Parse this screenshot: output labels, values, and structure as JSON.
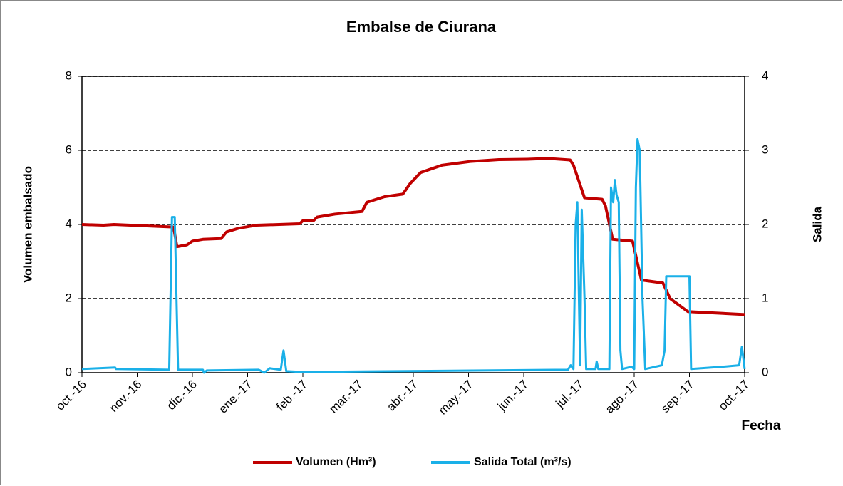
{
  "chart_data": {
    "type": "line",
    "title": "Embalse de Ciurana",
    "x_label": "Fecha",
    "y_label": "Volumen embalsado",
    "y2_label": "Salida",
    "xlim": [
      0,
      12
    ],
    "xticks": [
      {
        "value": 0,
        "label": "oct.-16"
      },
      {
        "value": 1,
        "label": "nov.-16"
      },
      {
        "value": 2,
        "label": "dic.-16"
      },
      {
        "value": 3,
        "label": "ene.-17"
      },
      {
        "value": 4,
        "label": "feb.-17"
      },
      {
        "value": 5,
        "label": "mar.-17"
      },
      {
        "value": 6,
        "label": "abr.-17"
      },
      {
        "value": 7,
        "label": "may.-17"
      },
      {
        "value": 8,
        "label": "jun.-17"
      },
      {
        "value": 9,
        "label": "jul.-17"
      },
      {
        "value": 10,
        "label": "ago.-17"
      },
      {
        "value": 11,
        "label": "sep.-17"
      },
      {
        "value": 12,
        "label": "oct.-17"
      }
    ],
    "ylim": [
      0,
      8
    ],
    "yticks": [
      0,
      2,
      4,
      6,
      8
    ],
    "y2lim": [
      0,
      4
    ],
    "y2ticks": [
      0,
      1,
      2,
      3,
      4
    ],
    "grid": true,
    "legend": "bottom",
    "series": [
      {
        "name": "Volumen (Hm³)",
        "color": "#c00000",
        "axis": "y",
        "x": [
          0,
          0.39,
          0.58,
          1.66,
          1.72,
          1.9,
          2.0,
          2.19,
          2.52,
          2.62,
          2.84,
          3.16,
          3.94,
          4.0,
          4.19,
          4.26,
          4.58,
          5.07,
          5.16,
          5.48,
          5.81,
          5.94,
          6.13,
          6.52,
          7.03,
          7.55,
          8.06,
          8.45,
          8.84,
          8.9,
          9.1,
          9.42,
          9.48,
          9.61,
          9.97,
          10.13,
          10.52,
          10.65,
          10.97,
          12.0
        ],
        "values": [
          4.0,
          3.98,
          4.0,
          3.93,
          3.4,
          3.45,
          3.55,
          3.6,
          3.62,
          3.8,
          3.9,
          3.98,
          4.02,
          4.1,
          4.1,
          4.2,
          4.28,
          4.35,
          4.6,
          4.75,
          4.82,
          5.1,
          5.4,
          5.6,
          5.7,
          5.75,
          5.76,
          5.78,
          5.74,
          5.6,
          4.72,
          4.68,
          4.5,
          3.6,
          3.55,
          2.5,
          2.42,
          2.0,
          1.65,
          1.57
        ]
      },
      {
        "name": "Salida Total (m³/s)",
        "color": "#1ab0e8",
        "axis": "y2",
        "x": [
          0,
          0.6,
          0.62,
          1.58,
          1.63,
          1.68,
          1.74,
          2.19,
          2.21,
          2.26,
          3.2,
          3.3,
          3.4,
          3.6,
          3.65,
          3.7,
          4.0,
          8.8,
          8.85,
          8.9,
          8.94,
          8.97,
          9.02,
          9.05,
          9.1,
          9.13,
          9.3,
          9.32,
          9.35,
          9.55,
          9.58,
          9.62,
          9.65,
          9.68,
          9.72,
          9.75,
          9.78,
          9.95,
          10.0,
          10.03,
          10.06,
          10.1,
          10.15,
          10.2,
          10.5,
          10.55,
          10.58,
          11.0,
          11.03,
          11.6,
          11.9,
          11.95,
          12.0
        ],
        "values": [
          0.05,
          0.07,
          0.05,
          0.04,
          2.1,
          2.1,
          0.04,
          0.04,
          0.0,
          0.03,
          0.04,
          0.0,
          0.06,
          0.04,
          0.3,
          0.02,
          0.01,
          0.04,
          0.1,
          0.05,
          2.0,
          2.3,
          0.1,
          2.2,
          1.0,
          0.05,
          0.05,
          0.15,
          0.05,
          0.05,
          2.5,
          2.3,
          2.6,
          2.4,
          2.3,
          0.3,
          0.05,
          0.08,
          0.05,
          2.5,
          3.15,
          3.0,
          1.0,
          0.05,
          0.1,
          0.3,
          1.3,
          1.3,
          0.05,
          0.08,
          0.1,
          0.35,
          0.05
        ]
      }
    ]
  }
}
